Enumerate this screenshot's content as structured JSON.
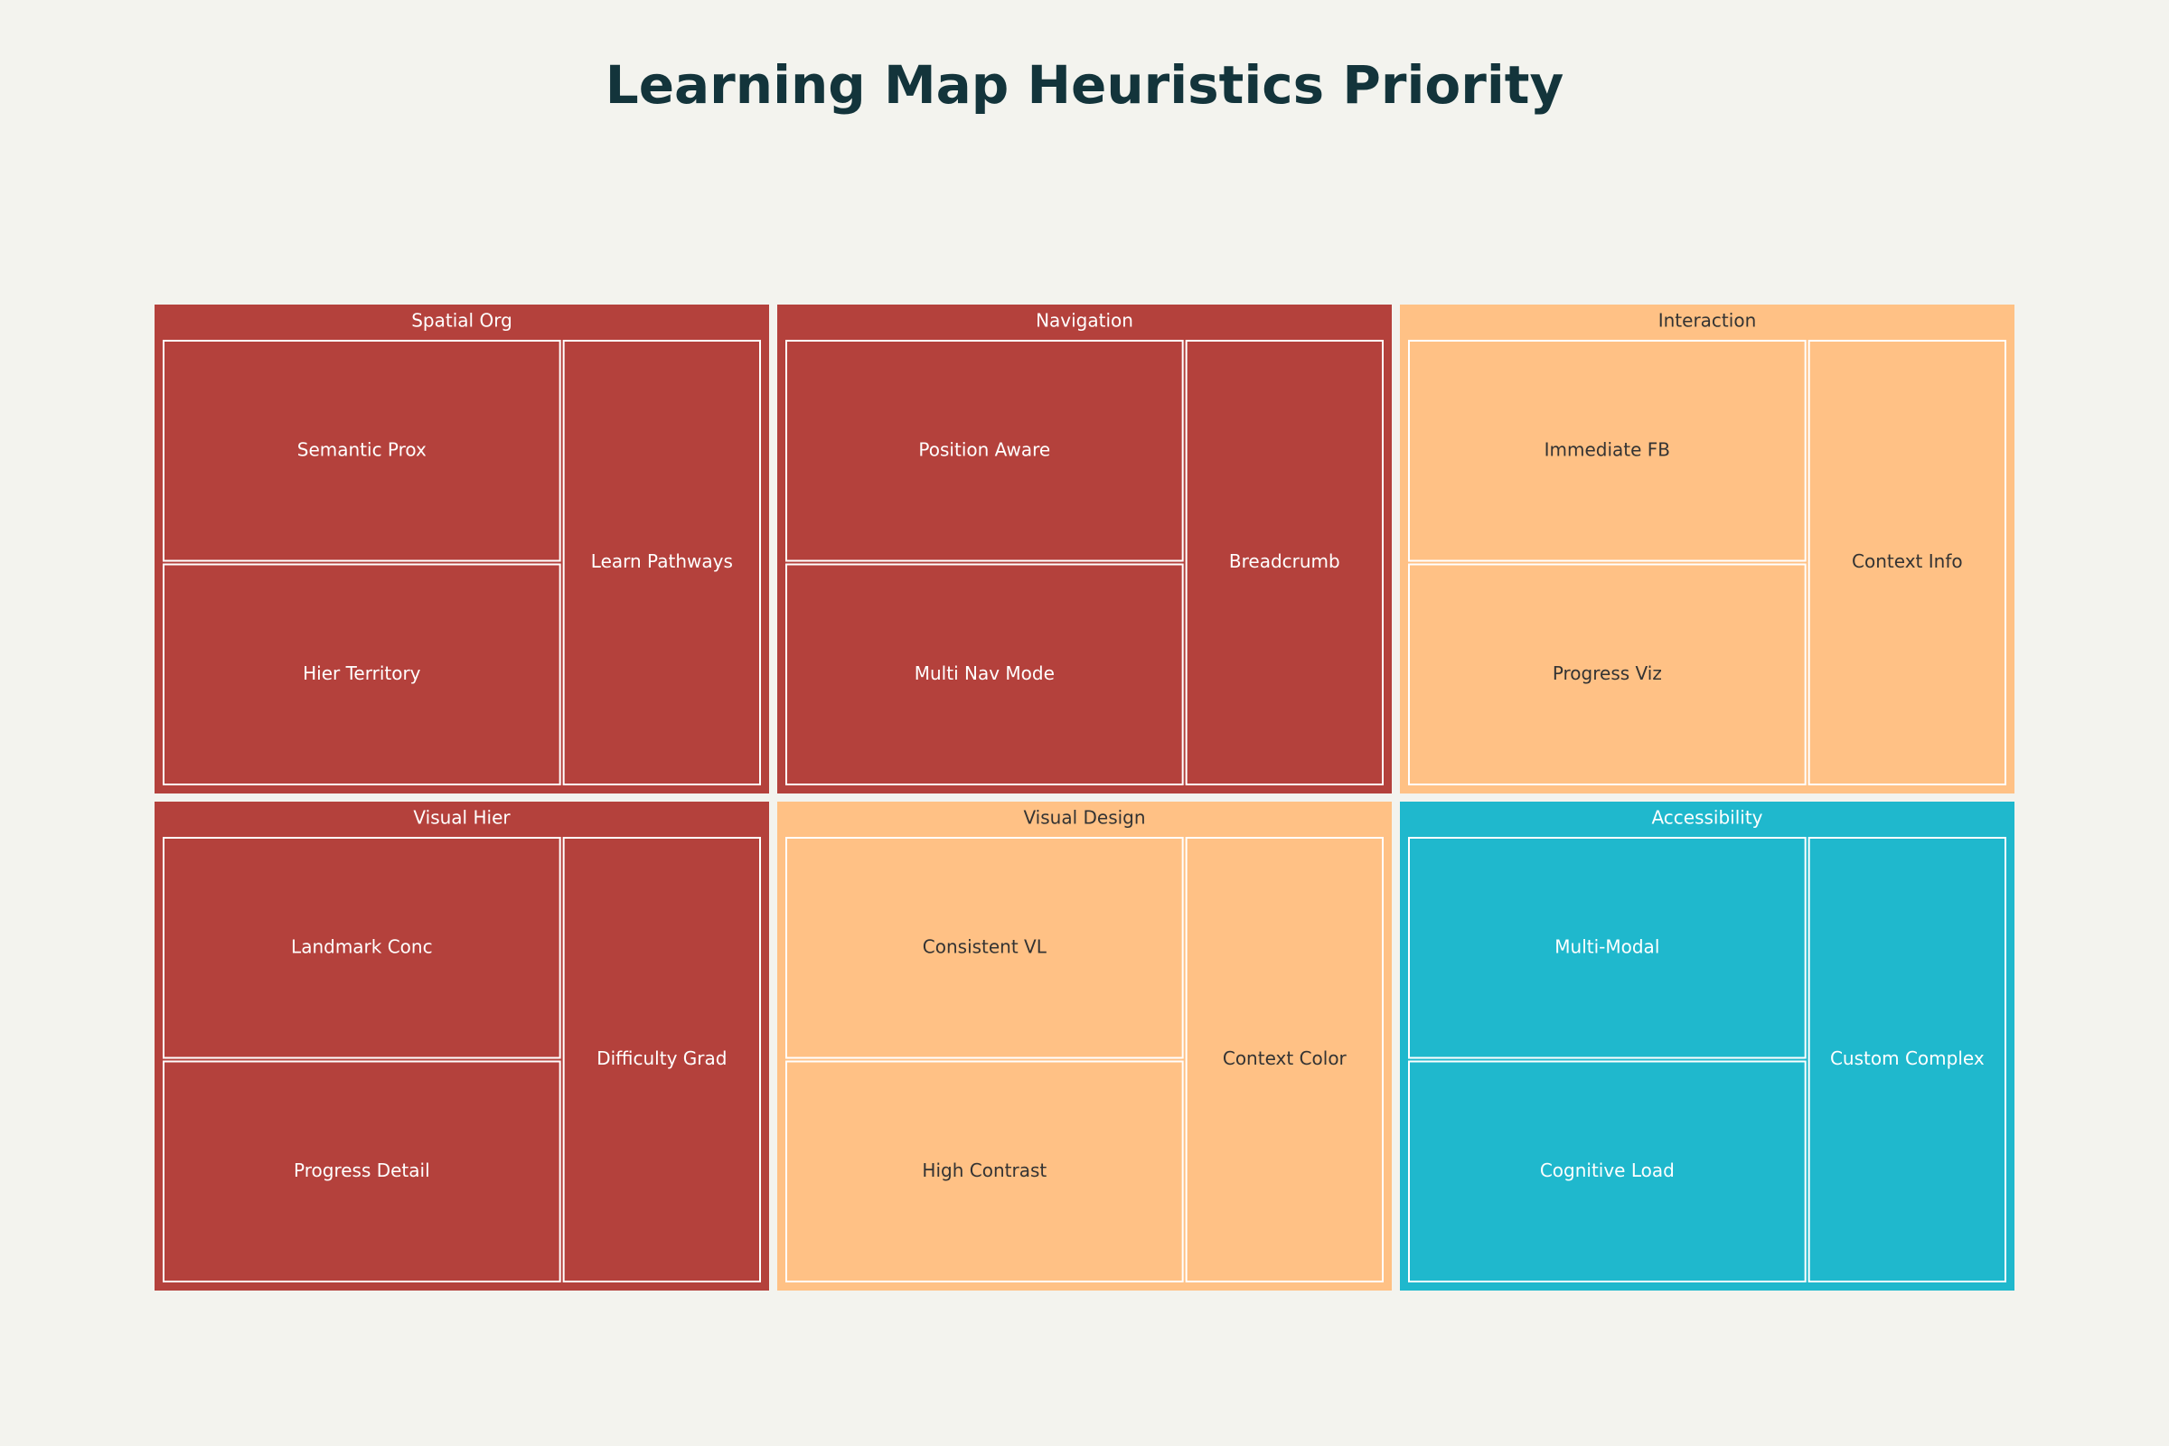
{
  "chart_data": {
    "type": "treemap",
    "title": "Learning Map Heuristics Priority",
    "groups": [
      {
        "name": "Spatial Org",
        "color": "#b4413c",
        "children": [
          {
            "name": "Semantic Prox",
            "value": 1
          },
          {
            "name": "Hier Territory",
            "value": 1
          },
          {
            "name": "Learn Pathways",
            "value": 1
          }
        ]
      },
      {
        "name": "Navigation",
        "color": "#b4413c",
        "children": [
          {
            "name": "Position Aware",
            "value": 1
          },
          {
            "name": "Multi Nav Mode",
            "value": 1
          },
          {
            "name": "Breadcrumb",
            "value": 1
          }
        ]
      },
      {
        "name": "Interaction",
        "color": "#ffc185",
        "children": [
          {
            "name": "Immediate FB",
            "value": 1
          },
          {
            "name": "Progress Viz",
            "value": 1
          },
          {
            "name": "Context Info",
            "value": 1
          }
        ]
      },
      {
        "name": "Visual Hier",
        "color": "#b4413c",
        "children": [
          {
            "name": "Landmark Conc",
            "value": 1
          },
          {
            "name": "Progress Detail",
            "value": 1
          },
          {
            "name": "Difficulty Grad",
            "value": 1
          }
        ]
      },
      {
        "name": "Visual Design",
        "color": "#ffc185",
        "children": [
          {
            "name": "Consistent VL",
            "value": 1
          },
          {
            "name": "High Contrast",
            "value": 1
          },
          {
            "name": "Context Color",
            "value": 1
          }
        ]
      },
      {
        "name": "Accessibility",
        "color": "#1fb8cd",
        "children": [
          {
            "name": "Multi-Modal",
            "value": 1
          },
          {
            "name": "Cognitive Load",
            "value": 1
          },
          {
            "name": "Custom Complex",
            "value": 1
          }
        ]
      }
    ]
  }
}
